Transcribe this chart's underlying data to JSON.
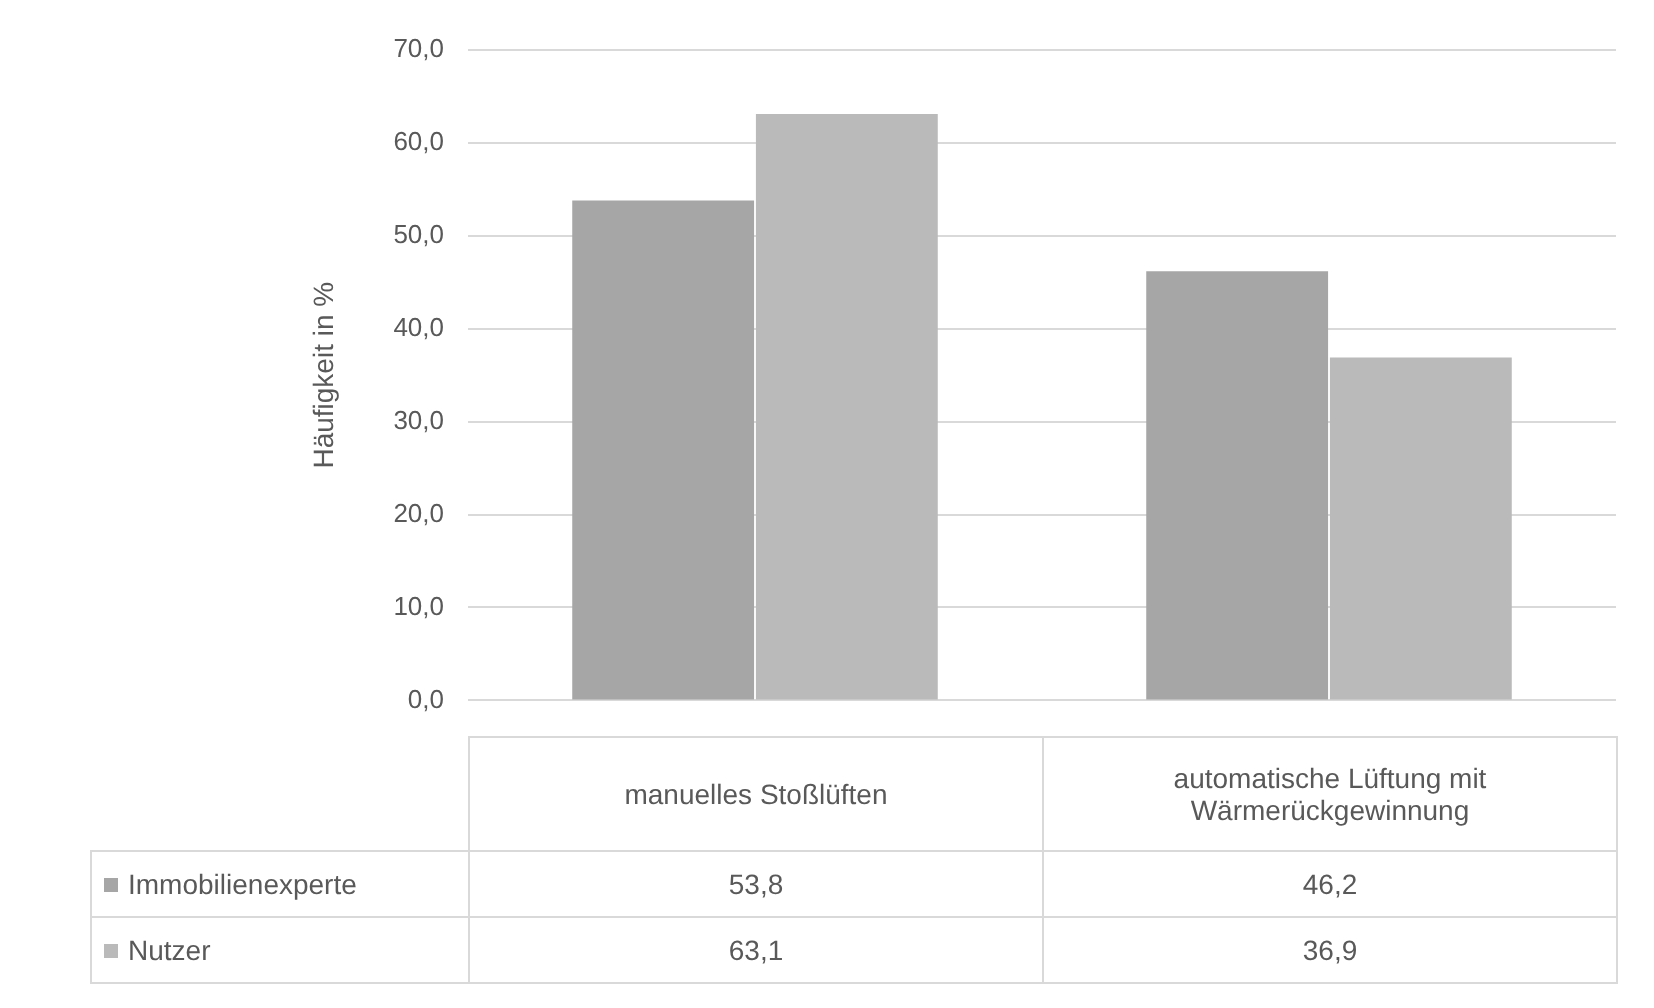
{
  "chart_data": {
    "type": "bar",
    "ylabel": "Häufigkeit in %",
    "categories": [
      "manuelles Stoßlüften",
      "automatische Lüftung mit Wärmerückgewinnung"
    ],
    "series": [
      {
        "name": "Immobilienexperte",
        "color": "#a6a6a6",
        "values": [
          53.8,
          46.2
        ],
        "value_labels": [
          "53,8",
          "46,2"
        ]
      },
      {
        "name": "Nutzer",
        "color": "#bababa",
        "values": [
          63.1,
          36.9
        ],
        "value_labels": [
          "63,1",
          "36,9"
        ]
      }
    ],
    "ylim": [
      0,
      70
    ],
    "yticks": [
      {
        "value": 0,
        "label": "0,0"
      },
      {
        "value": 10,
        "label": "10,0"
      },
      {
        "value": 20,
        "label": "20,0"
      },
      {
        "value": 30,
        "label": "30,0"
      },
      {
        "value": 40,
        "label": "40,0"
      },
      {
        "value": 50,
        "label": "50,0"
      },
      {
        "value": 60,
        "label": "60,0"
      },
      {
        "value": 70,
        "label": "70,0"
      }
    ],
    "grid": "y",
    "legend": "bottom"
  }
}
